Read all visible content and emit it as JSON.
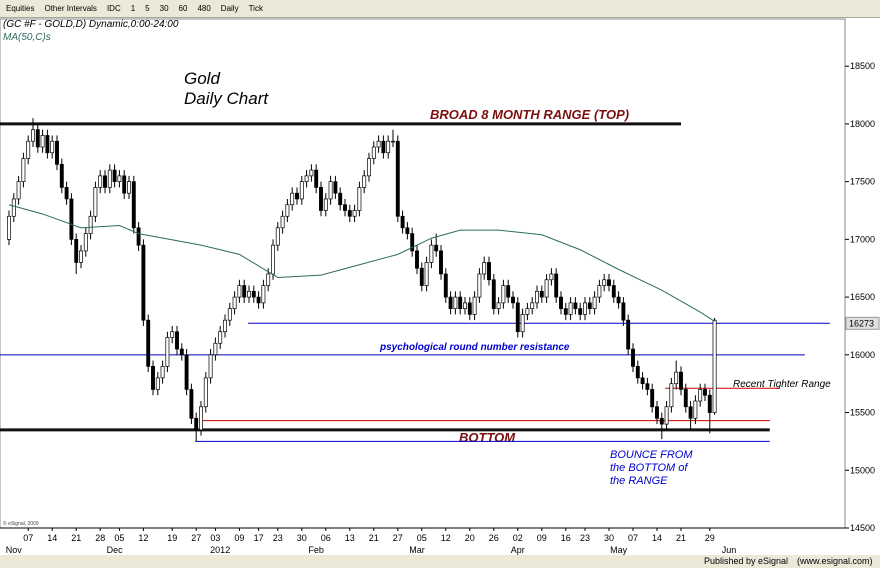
{
  "toolbar": {
    "items": [
      "Equities",
      "Other Intervals",
      "IDC",
      "1",
      "5",
      "30",
      "60",
      "480",
      "Daily",
      "Tick"
    ]
  },
  "footer": {
    "published": "Published by eSignal",
    "url": "(www.esignal.com)"
  },
  "chart_data": {
    "type": "candlestick",
    "header": "(GC #F - GOLD,D) Dynamic,0:00-24:00",
    "ma_label": "MA(50,C)s",
    "copyright": "© eSignal, 2009",
    "title": "Gold",
    "subtitle": "Daily Chart",
    "annotations": [
      "BROAD 8 MONTH RANGE  (TOP)",
      "psychological round number resistance",
      "BOTTOM",
      "Recent Tighter Range",
      "BOUNCE FROM",
      "the BOTTOM of",
      "the RANGE"
    ],
    "price_label": 16273,
    "ylim": [
      14500,
      18900
    ],
    "yticks": [
      14500,
      15000,
      15500,
      16000,
      16500,
      17000,
      17500,
      18000,
      18500
    ],
    "xlim": [
      -1.875,
      174.17
    ],
    "xticks": [
      {
        "value": 4,
        "label": "07"
      },
      {
        "value": 9,
        "label": "14"
      },
      {
        "value": 14,
        "label": "21"
      },
      {
        "value": 19,
        "label": "28"
      },
      {
        "value": 23,
        "label": "05"
      },
      {
        "value": 28,
        "label": "12"
      },
      {
        "value": 34,
        "label": "19"
      },
      {
        "value": 39,
        "label": "27"
      },
      {
        "value": 43,
        "label": "03"
      },
      {
        "value": 48,
        "label": "09"
      },
      {
        "value": 52,
        "label": "17"
      },
      {
        "value": 56,
        "label": "23"
      },
      {
        "value": 61,
        "label": "30"
      },
      {
        "value": 66,
        "label": "06"
      },
      {
        "value": 71,
        "label": "13"
      },
      {
        "value": 76,
        "label": "21"
      },
      {
        "value": 81,
        "label": "27"
      },
      {
        "value": 86,
        "label": "05"
      },
      {
        "value": 91,
        "label": "12"
      },
      {
        "value": 96,
        "label": "20"
      },
      {
        "value": 101,
        "label": "26"
      },
      {
        "value": 106,
        "label": "02"
      },
      {
        "value": 111,
        "label": "09"
      },
      {
        "value": 116,
        "label": "16"
      },
      {
        "value": 120,
        "label": "23"
      },
      {
        "value": 125,
        "label": "30"
      },
      {
        "value": 130,
        "label": "07"
      },
      {
        "value": 135,
        "label": "14"
      },
      {
        "value": 140,
        "label": "21"
      },
      {
        "value": 146,
        "label": "29"
      }
    ],
    "months": [
      {
        "value": 1,
        "label": "Nov"
      },
      {
        "value": 22,
        "label": "Dec"
      },
      {
        "value": 44,
        "label": "2012"
      },
      {
        "value": 64,
        "label": "Feb"
      },
      {
        "value": 85,
        "label": "Mar"
      },
      {
        "value": 106,
        "label": "Apr"
      },
      {
        "value": 127,
        "label": "May"
      },
      {
        "value": 150,
        "label": "Jun"
      }
    ],
    "candles": [
      [
        17000,
        17250,
        16950,
        17200
      ],
      [
        17200,
        17400,
        17150,
        17350
      ],
      [
        17350,
        17550,
        17300,
        17500
      ],
      [
        17500,
        17750,
        17450,
        17700
      ],
      [
        17700,
        17900,
        17650,
        17850
      ],
      [
        17850,
        18050,
        17800,
        17950
      ],
      [
        17950,
        18000,
        17750,
        17800
      ],
      [
        17800,
        17950,
        17750,
        17900
      ],
      [
        17900,
        17950,
        17700,
        17750
      ],
      [
        17750,
        17900,
        17700,
        17850
      ],
      [
        17850,
        17900,
        17600,
        17650
      ],
      [
        17650,
        17700,
        17400,
        17450
      ],
      [
        17450,
        17500,
        17300,
        17350
      ],
      [
        17350,
        17400,
        16950,
        17000
      ],
      [
        17000,
        17050,
        16700,
        16800
      ],
      [
        16800,
        16950,
        16750,
        16900
      ],
      [
        16900,
        17100,
        16850,
        17050
      ],
      [
        17050,
        17250,
        17000,
        17200
      ],
      [
        17200,
        17500,
        17150,
        17450
      ],
      [
        17450,
        17600,
        17400,
        17550
      ],
      [
        17550,
        17600,
        17400,
        17450
      ],
      [
        17450,
        17650,
        17400,
        17600
      ],
      [
        17600,
        17650,
        17450,
        17500
      ],
      [
        17500,
        17600,
        17450,
        17550
      ],
      [
        17550,
        17600,
        17350,
        17400
      ],
      [
        17400,
        17550,
        17350,
        17500
      ],
      [
        17500,
        17550,
        17050,
        17100
      ],
      [
        17100,
        17150,
        16900,
        16950
      ],
      [
        16950,
        17000,
        16250,
        16300
      ],
      [
        16300,
        16350,
        15850,
        15900
      ],
      [
        15900,
        15950,
        15650,
        15700
      ],
      [
        15700,
        15850,
        15650,
        15800
      ],
      [
        15800,
        15950,
        15750,
        15900
      ],
      [
        15900,
        16200,
        15850,
        16150
      ],
      [
        16150,
        16250,
        16100,
        16200
      ],
      [
        16200,
        16250,
        16000,
        16050
      ],
      [
        16050,
        16100,
        15950,
        16000
      ],
      [
        16000,
        16050,
        15650,
        15700
      ],
      [
        15700,
        15750,
        15400,
        15450
      ],
      [
        15450,
        15500,
        15250,
        15350
      ],
      [
        15350,
        15600,
        15300,
        15550
      ],
      [
        15550,
        15850,
        15500,
        15800
      ],
      [
        15800,
        16050,
        15750,
        16000
      ],
      [
        16000,
        16150,
        15950,
        16100
      ],
      [
        16100,
        16250,
        16050,
        16200
      ],
      [
        16200,
        16350,
        16150,
        16300
      ],
      [
        16300,
        16450,
        16250,
        16400
      ],
      [
        16400,
        16550,
        16350,
        16500
      ],
      [
        16500,
        16650,
        16450,
        16600
      ],
      [
        16600,
        16650,
        16450,
        16500
      ],
      [
        16500,
        16600,
        16450,
        16550
      ],
      [
        16550,
        16600,
        16450,
        16500
      ],
      [
        16500,
        16550,
        16400,
        16450
      ],
      [
        16450,
        16650,
        16400,
        16600
      ],
      [
        16600,
        16750,
        16550,
        16700
      ],
      [
        16700,
        17000,
        16650,
        16950
      ],
      [
        16950,
        17150,
        16900,
        17100
      ],
      [
        17100,
        17250,
        17050,
        17200
      ],
      [
        17200,
        17350,
        17150,
        17300
      ],
      [
        17300,
        17450,
        17250,
        17400
      ],
      [
        17400,
        17450,
        17300,
        17350
      ],
      [
        17350,
        17550,
        17300,
        17500
      ],
      [
        17500,
        17600,
        17450,
        17550
      ],
      [
        17550,
        17650,
        17500,
        17600
      ],
      [
        17600,
        17650,
        17400,
        17450
      ],
      [
        17450,
        17500,
        17200,
        17250
      ],
      [
        17250,
        17400,
        17200,
        17350
      ],
      [
        17350,
        17550,
        17300,
        17500
      ],
      [
        17500,
        17550,
        17350,
        17400
      ],
      [
        17400,
        17450,
        17250,
        17300
      ],
      [
        17300,
        17350,
        17200,
        17250
      ],
      [
        17250,
        17300,
        17150,
        17200
      ],
      [
        17200,
        17300,
        17150,
        17250
      ],
      [
        17250,
        17500,
        17200,
        17450
      ],
      [
        17450,
        17600,
        17400,
        17550
      ],
      [
        17550,
        17750,
        17500,
        17700
      ],
      [
        17700,
        17850,
        17650,
        17800
      ],
      [
        17800,
        17900,
        17750,
        17850
      ],
      [
        17850,
        17900,
        17700,
        17750
      ],
      [
        17750,
        17900,
        17700,
        17850
      ],
      [
        17850,
        17950,
        17800,
        17850
      ],
      [
        17850,
        17900,
        17150,
        17200
      ],
      [
        17200,
        17250,
        17050,
        17100
      ],
      [
        17100,
        17150,
        17000,
        17050
      ],
      [
        17050,
        17100,
        16850,
        16900
      ],
      [
        16900,
        16950,
        16700,
        16750
      ],
      [
        16750,
        16800,
        16550,
        16600
      ],
      [
        16600,
        16850,
        16550,
        16800
      ],
      [
        16800,
        17000,
        16750,
        16950
      ],
      [
        16950,
        17050,
        16850,
        16900
      ],
      [
        16900,
        16950,
        16650,
        16700
      ],
      [
        16700,
        16750,
        16450,
        16500
      ],
      [
        16500,
        16550,
        16350,
        16400
      ],
      [
        16400,
        16550,
        16350,
        16500
      ],
      [
        16500,
        16550,
        16350,
        16400
      ],
      [
        16400,
        16500,
        16350,
        16450
      ],
      [
        16450,
        16500,
        16300,
        16350
      ],
      [
        16350,
        16550,
        16300,
        16500
      ],
      [
        16500,
        16750,
        16450,
        16700
      ],
      [
        16700,
        16850,
        16650,
        16800
      ],
      [
        16800,
        16850,
        16600,
        16650
      ],
      [
        16650,
        16700,
        16350,
        16400
      ],
      [
        16400,
        16500,
        16350,
        16450
      ],
      [
        16450,
        16650,
        16400,
        16600
      ],
      [
        16600,
        16650,
        16450,
        16500
      ],
      [
        16500,
        16550,
        16400,
        16450
      ],
      [
        16450,
        16500,
        16150,
        16200
      ],
      [
        16200,
        16400,
        16150,
        16350
      ],
      [
        16350,
        16450,
        16300,
        16400
      ],
      [
        16400,
        16500,
        16350,
        16450
      ],
      [
        16450,
        16600,
        16400,
        16550
      ],
      [
        16550,
        16600,
        16450,
        16500
      ],
      [
        16500,
        16700,
        16450,
        16650
      ],
      [
        16650,
        16750,
        16600,
        16700
      ],
      [
        16700,
        16750,
        16450,
        16500
      ],
      [
        16500,
        16550,
        16350,
        16400
      ],
      [
        16400,
        16450,
        16300,
        16350
      ],
      [
        16350,
        16500,
        16300,
        16450
      ],
      [
        16450,
        16500,
        16350,
        16400
      ],
      [
        16400,
        16450,
        16300,
        16350
      ],
      [
        16350,
        16500,
        16300,
        16450
      ],
      [
        16450,
        16500,
        16350,
        16400
      ],
      [
        16400,
        16550,
        16350,
        16500
      ],
      [
        16500,
        16650,
        16450,
        16600
      ],
      [
        16600,
        16700,
        16550,
        16650
      ],
      [
        16650,
        16700,
        16550,
        16600
      ],
      [
        16600,
        16650,
        16450,
        16500
      ],
      [
        16500,
        16550,
        16400,
        16450
      ],
      [
        16450,
        16500,
        16250,
        16300
      ],
      [
        16300,
        16350,
        16000,
        16050
      ],
      [
        16050,
        16100,
        15850,
        15900
      ],
      [
        15900,
        15950,
        15750,
        15800
      ],
      [
        15800,
        15850,
        15700,
        15750
      ],
      [
        15750,
        15800,
        15650,
        15700
      ],
      [
        15700,
        15750,
        15500,
        15550
      ],
      [
        15550,
        15600,
        15400,
        15450
      ],
      [
        15450,
        15500,
        15270,
        15400
      ],
      [
        15400,
        15600,
        15350,
        15550
      ],
      [
        15550,
        15800,
        15500,
        15750
      ],
      [
        15750,
        15950,
        15700,
        15850
      ],
      [
        15850,
        15900,
        15650,
        15700
      ],
      [
        15700,
        15750,
        15500,
        15550
      ],
      [
        15550,
        15600,
        15350,
        15450
      ],
      [
        15450,
        15650,
        15400,
        15600
      ],
      [
        15600,
        15750,
        15550,
        15700
      ],
      [
        15700,
        15750,
        15600,
        15650
      ],
      [
        15650,
        15700,
        15320,
        15500
      ],
      [
        15500,
        16320,
        15480,
        16300
      ]
    ],
    "ma": {
      "color": "#2e6b5e",
      "x": [
        0,
        7,
        15,
        23,
        27,
        40,
        48,
        56,
        65,
        73,
        81,
        88,
        94,
        102,
        111,
        119,
        127,
        136,
        144,
        147
      ],
      "values": [
        17300,
        17220,
        17100,
        17120,
        17050,
        16950,
        16870,
        16670,
        16690,
        16780,
        16870,
        17010,
        17080,
        17080,
        17040,
        16910,
        16740,
        16560,
        16370,
        16290
      ]
    },
    "levels": [
      {
        "value": 18000,
        "from": -1.875,
        "to": 140,
        "color": "#111111",
        "width": 3
      },
      {
        "value": 15350,
        "from": -1.875,
        "to": 158.5,
        "color": "#111111",
        "width": 3
      },
      {
        "value": 16000,
        "from": -1.875,
        "to": 165.8,
        "color": "#0000cc",
        "width": 1
      },
      {
        "value": 16273,
        "from": 49.8,
        "to": 171,
        "color": "#0000cc",
        "width": 1
      },
      {
        "value": 15250,
        "from": 38.8,
        "to": 158.5,
        "color": "#0000cc",
        "width": 1
      },
      {
        "value": 15430,
        "from": 39.8,
        "to": 158.5,
        "color": "#cc0000",
        "width": 1
      },
      {
        "value": 15710,
        "from": 136.7,
        "to": 160.6,
        "color": "#cc0000",
        "width": 1
      }
    ]
  }
}
